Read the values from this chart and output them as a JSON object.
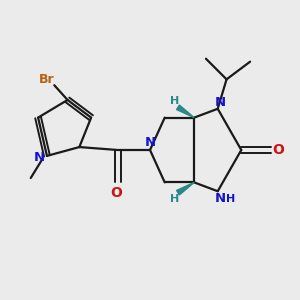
{
  "bg_color": "#ebebeb",
  "bond_color": "#1a1a1a",
  "N_color": "#1414cc",
  "O_color": "#cc1414",
  "Br_color": "#b86010",
  "teal_color": "#2a8888",
  "line_width": 1.6,
  "figsize": [
    3.0,
    3.0
  ],
  "dpi": 100,
  "xlim": [
    0,
    10
  ],
  "ylim": [
    0,
    10
  ]
}
